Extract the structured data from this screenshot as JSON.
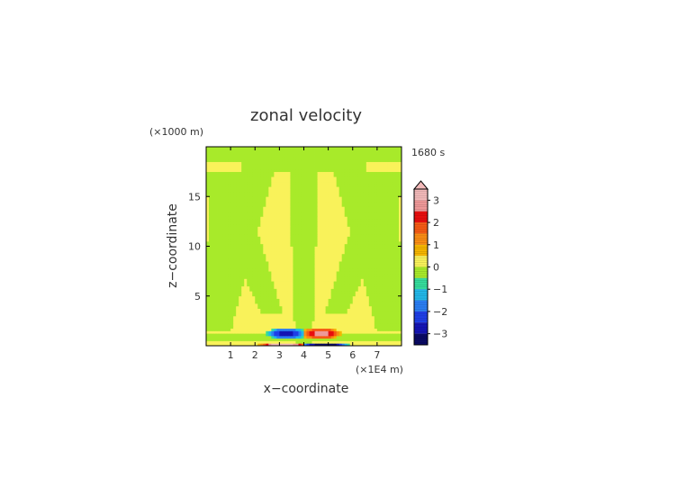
{
  "chart_data": {
    "type": "heatmap",
    "title": "zonal velocity",
    "xlabel": "x−coordinate",
    "ylabel": "z−coordinate",
    "x_unit": "(×1E4 m)",
    "y_unit": "(×1000 m)",
    "time_label": "1680 s",
    "xlim": [
      0,
      8
    ],
    "ylim": [
      0,
      20
    ],
    "x_ticks": [
      "1",
      "2",
      "3",
      "4",
      "5",
      "6",
      "7"
    ],
    "y_ticks": [
      "5",
      "10",
      "15"
    ],
    "x_tick_values": [
      1,
      2,
      3,
      4,
      5,
      6,
      7
    ],
    "y_tick_values": [
      5,
      10,
      15
    ],
    "colorbar": {
      "labels": [
        "3",
        "2",
        "1",
        "0",
        "−1",
        "−2",
        "−3"
      ],
      "label_values": [
        3,
        2,
        1,
        0,
        -1,
        -2,
        -3
      ],
      "range": [
        -3.5,
        3.5
      ],
      "extend": "max",
      "levels": [
        {
          "from": 3.0,
          "to": 3.5,
          "color": "#f2b9b9"
        },
        {
          "from": 2.5,
          "to": 3.0,
          "color": "#ee9898"
        },
        {
          "from": 2.0,
          "to": 2.5,
          "color": "#e80e0e"
        },
        {
          "from": 1.5,
          "to": 2.0,
          "color": "#f55a14"
        },
        {
          "from": 1.0,
          "to": 1.5,
          "color": "#f98c14"
        },
        {
          "from": 0.5,
          "to": 1.0,
          "color": "#f5b500"
        },
        {
          "from": 0.0,
          "to": 0.5,
          "color": "#f9f25a"
        },
        {
          "from": -0.5,
          "to": 0.0,
          "color": "#a8ea2a"
        },
        {
          "from": -1.0,
          "to": -0.5,
          "color": "#35dc9c"
        },
        {
          "from": -1.5,
          "to": -1.0,
          "color": "#22b7e8"
        },
        {
          "from": -2.0,
          "to": -1.5,
          "color": "#2a7ef2"
        },
        {
          "from": -2.5,
          "to": -2.0,
          "color": "#1f3fe6"
        },
        {
          "from": -3.0,
          "to": -2.5,
          "color": "#1414b4"
        },
        {
          "from": -3.5,
          "to": -3.0,
          "color": "#0a0a64"
        }
      ]
    },
    "field": {
      "background_value": 0.25,
      "symmetry_axis_x": 4.0
    }
  }
}
